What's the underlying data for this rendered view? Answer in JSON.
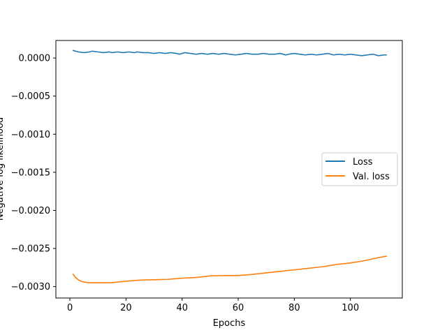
{
  "chart_data": {
    "type": "line",
    "title": "",
    "xlabel": "Epochs",
    "ylabel": "Negative log likelihood",
    "xlim": [
      -5,
      118.5
    ],
    "ylim": [
      -0.00315,
      0.00023
    ],
    "xticks": [
      0,
      20,
      40,
      60,
      80,
      100
    ],
    "xtick_labels": [
      "0",
      "20",
      "40",
      "60",
      "80",
      "100"
    ],
    "yticks": [
      0.0,
      -0.0005,
      -0.001,
      -0.0015,
      -0.002,
      -0.0025,
      -0.003
    ],
    "ytick_labels": [
      "0.0000",
      "−0.0005",
      "−0.0010",
      "−0.0015",
      "−0.0020",
      "−0.0025",
      "−0.0030"
    ],
    "grid": false,
    "legend_position": "center-right",
    "series": [
      {
        "name": "Loss",
        "color": "#1f77b4",
        "x": [
          1,
          3,
          5,
          7,
          8,
          10,
          12,
          14,
          15,
          17,
          19,
          21,
          23,
          24,
          26,
          28,
          30,
          32,
          34,
          36,
          38,
          39,
          41,
          43,
          45,
          47,
          49,
          51,
          53,
          55,
          57,
          59,
          61,
          63,
          65,
          67,
          69,
          71,
          73,
          75,
          77,
          78,
          80,
          82,
          84,
          86,
          88,
          90,
          92,
          94,
          96,
          98,
          100,
          102,
          104,
          106,
          108,
          110,
          112,
          113
        ],
        "y": [
          0.0001,
          8e-05,
          7e-05,
          8e-05,
          9e-05,
          8e-05,
          7e-05,
          8e-05,
          7e-05,
          8e-05,
          7e-05,
          8e-05,
          7e-05,
          8e-05,
          7e-05,
          7e-05,
          6e-05,
          7e-05,
          6e-05,
          7e-05,
          6e-05,
          5e-05,
          7e-05,
          6e-05,
          5e-05,
          6e-05,
          5e-05,
          6e-05,
          5e-05,
          6e-05,
          5e-05,
          4e-05,
          5e-05,
          6e-05,
          5e-05,
          5e-05,
          6e-05,
          5e-05,
          5e-05,
          6e-05,
          4e-05,
          5e-05,
          6e-05,
          5e-05,
          4e-05,
          5e-05,
          4e-05,
          5e-05,
          6e-05,
          4e-05,
          5e-05,
          4e-05,
          5e-05,
          4e-05,
          3e-05,
          4e-05,
          5e-05,
          3e-05,
          4e-05,
          4e-05
        ]
      },
      {
        "name": "Val. loss",
        "color": "#ff7f0e",
        "x": [
          1,
          2,
          3,
          4,
          5,
          6,
          7,
          8,
          10,
          12,
          15,
          20,
          25,
          30,
          35,
          40,
          45,
          50,
          55,
          60,
          65,
          70,
          75,
          80,
          85,
          90,
          95,
          100,
          105,
          110,
          113
        ],
        "y": [
          -0.00283,
          -0.00288,
          -0.00291,
          -0.00293,
          -0.00294,
          -0.002945,
          -0.00295,
          -0.00295,
          -0.00295,
          -0.00295,
          -0.002948,
          -0.00293,
          -0.002915,
          -0.00291,
          -0.002905,
          -0.00289,
          -0.00288,
          -0.00286,
          -0.002855,
          -0.002855,
          -0.00284,
          -0.00282,
          -0.0028,
          -0.00278,
          -0.00276,
          -0.00274,
          -0.00271,
          -0.00269,
          -0.00266,
          -0.00262,
          -0.0026
        ]
      }
    ]
  }
}
